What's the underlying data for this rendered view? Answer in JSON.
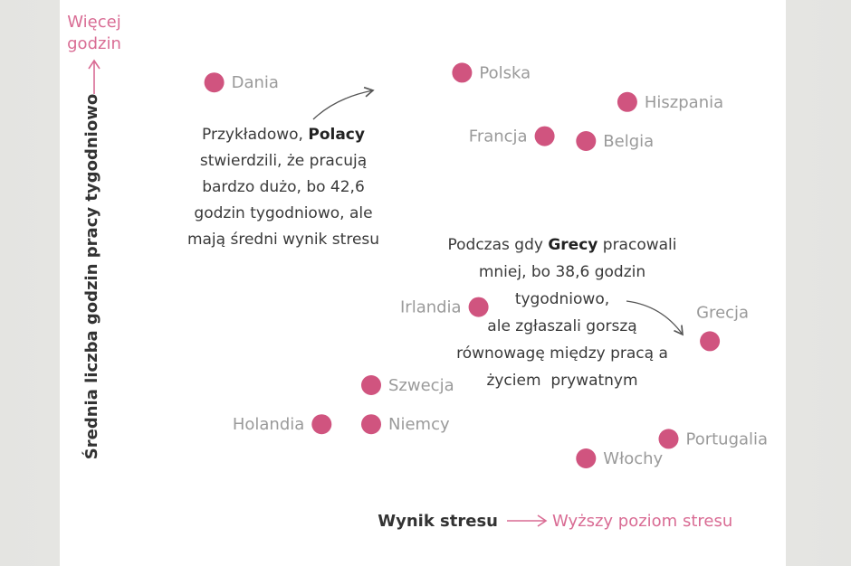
{
  "chart_data": {
    "type": "scatter",
    "xlabel": "Wynik stresu",
    "xlabel_hint": "Wyższy poziom stresu",
    "ylabel": "Średnia liczba godzin pracy tygodniowo",
    "ylabel_hint": [
      "Więcej",
      "godzin"
    ],
    "point_color": "#d0547f",
    "points": [
      {
        "label": "Dania",
        "x": 1.3,
        "y": 9.2
      },
      {
        "label": "Polska",
        "x": 4.3,
        "y": 9.4
      },
      {
        "label": "Hiszpania",
        "x": 6.3,
        "y": 8.8
      },
      {
        "label": "Francja",
        "x": 5.3,
        "y": 8.1
      },
      {
        "label": "Belgia",
        "x": 5.8,
        "y": 8.0
      },
      {
        "label": "Irlandia",
        "x": 4.5,
        "y": 4.6
      },
      {
        "label": "Grecja",
        "x": 7.3,
        "y": 3.9
      },
      {
        "label": "Szwecja",
        "x": 3.2,
        "y": 3.0
      },
      {
        "label": "Holandia",
        "x": 2.6,
        "y": 2.2
      },
      {
        "label": "Niemcy",
        "x": 3.2,
        "y": 2.2
      },
      {
        "label": "Portugalia",
        "x": 6.8,
        "y": 1.9
      },
      {
        "label": "Włochy",
        "x": 5.8,
        "y": 1.5
      }
    ],
    "annotations": [
      {
        "target": "Polska",
        "lines": [
          [
            {
              "t": "Przykładowo, "
            },
            {
              "t": "Polacy",
              "b": true
            }
          ],
          [
            {
              "t": "stwierdzili, że pracują"
            }
          ],
          [
            {
              "t": "bardzo dużo, bo 42,6"
            }
          ],
          [
            {
              "t": "godzin tygodniowo, ale"
            }
          ],
          [
            {
              "t": "mają średni wynik stresu"
            }
          ]
        ]
      },
      {
        "target": "Grecja",
        "lines": [
          [
            {
              "t": "Podczas gdy "
            },
            {
              "t": "Grecy",
              "b": true
            },
            {
              "t": " pracowali"
            }
          ],
          [
            {
              "t": "mniej, bo 38,6 godzin"
            }
          ],
          [
            {
              "t": "tygodniowo,"
            }
          ],
          [
            {
              "t": "ale zgłaszali gorszą"
            }
          ],
          [
            {
              "t": "równowagę między pracą a"
            }
          ],
          [
            {
              "t": "życiem  prywatnym"
            }
          ]
        ]
      }
    ],
    "xlim": [
      0,
      8
    ],
    "ylim": [
      0,
      10
    ],
    "grid": false,
    "legend": "none"
  }
}
